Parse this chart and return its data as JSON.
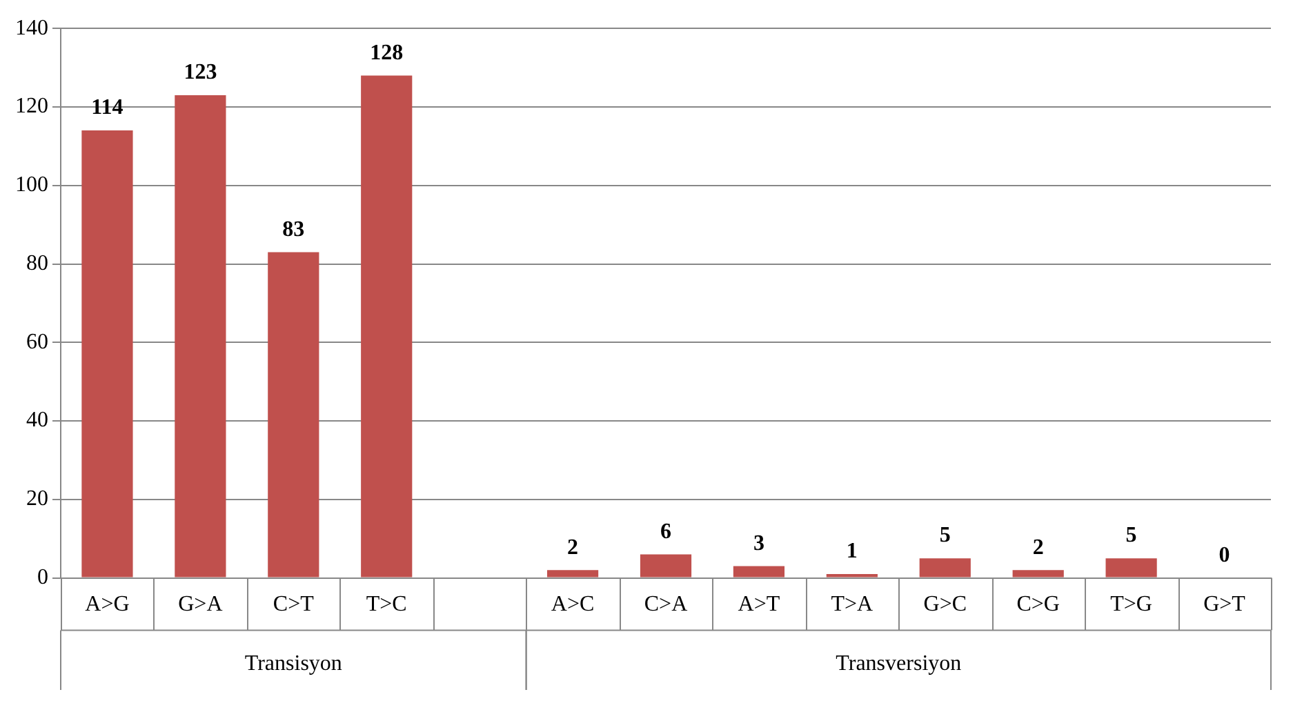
{
  "chart_data": {
    "type": "bar",
    "categories": [
      "A>G",
      "G>A",
      "C>T",
      "T>C",
      null,
      "A>C",
      "C>A",
      "A>T",
      "T>A",
      "G>C",
      "C>G",
      "T>G",
      "G>T"
    ],
    "values": [
      114,
      123,
      83,
      128,
      null,
      2,
      6,
      3,
      1,
      5,
      2,
      5,
      0
    ],
    "color": "#c0504d",
    "ylim": [
      0,
      140
    ],
    "yticks": [
      0,
      20,
      40,
      60,
      80,
      100,
      120,
      140
    ],
    "grid": "y",
    "data_labels": true,
    "legend": false,
    "annotations": [
      "Transisyon",
      "Transversiyon"
    ]
  }
}
